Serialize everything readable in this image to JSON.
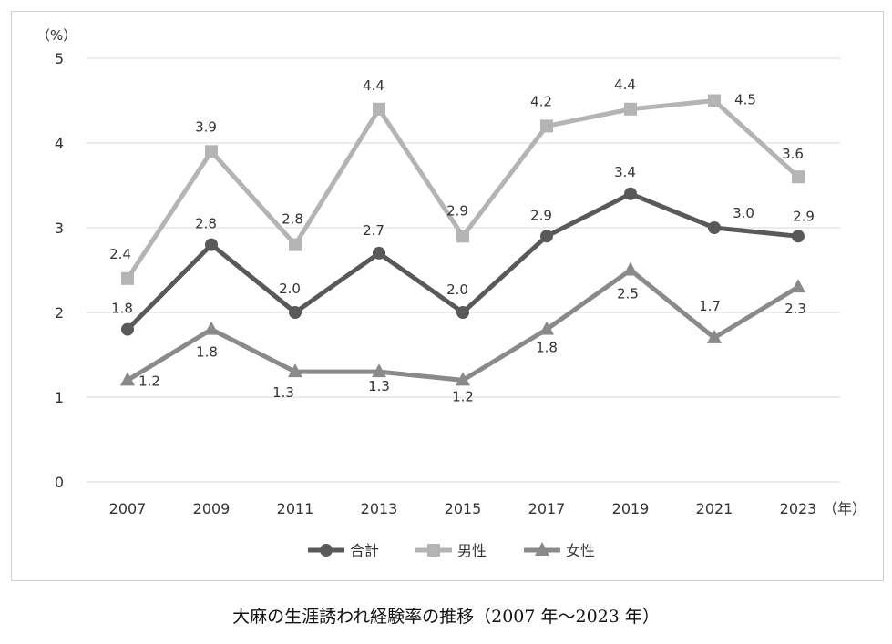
{
  "chart_data": {
    "type": "line",
    "title": "",
    "y_unit_label": "（%）",
    "x_unit_label": "（年）",
    "ylim": [
      0,
      5
    ],
    "yticks": [
      "0",
      "1",
      "2",
      "3",
      "4",
      "5"
    ],
    "categories": [
      "2007",
      "2009",
      "2011",
      "2013",
      "2015",
      "2017",
      "2019",
      "2021",
      "2023"
    ],
    "grid": true,
    "legend_position": "bottom",
    "series": [
      {
        "name": "合計",
        "marker": "circle",
        "color": "#595959",
        "values": [
          1.8,
          2.8,
          2.0,
          2.7,
          2.0,
          2.9,
          3.4,
          3.0,
          2.9
        ],
        "labels": [
          "1.8",
          "2.8",
          "2.0",
          "2.7",
          "2.0",
          "2.9",
          "3.4",
          "3.0",
          "2.9"
        ]
      },
      {
        "name": "男性",
        "marker": "square",
        "color": "#b4b4b4",
        "values": [
          2.4,
          3.9,
          2.8,
          4.4,
          2.9,
          4.2,
          4.4,
          4.5,
          3.6
        ],
        "labels": [
          "2.4",
          "3.9",
          "2.8",
          "4.4",
          "2.9",
          "4.2",
          "4.4",
          "4.5",
          "3.6"
        ]
      },
      {
        "name": "女性",
        "marker": "triangle",
        "color": "#8a8a8a",
        "values": [
          1.2,
          1.8,
          1.3,
          1.3,
          1.2,
          1.8,
          2.5,
          1.7,
          2.3
        ],
        "labels": [
          "1.2",
          "1.8",
          "1.3",
          "1.3",
          "1.2",
          "1.8",
          "2.5",
          "1.7",
          "2.3"
        ]
      }
    ]
  },
  "caption": "大麻の生涯誘われ経験率の推移（2007 年〜2023 年）"
}
